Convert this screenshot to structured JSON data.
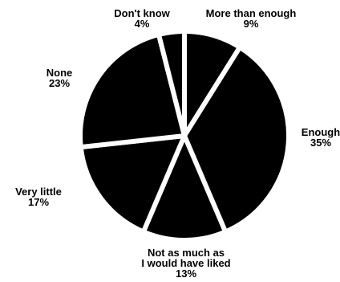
{
  "chart_data": {
    "type": "pie",
    "title": "",
    "slices": [
      {
        "label_lines": [
          "More than enough"
        ],
        "value": 9,
        "value_label": "9%"
      },
      {
        "label_lines": [
          "Enough"
        ],
        "value": 35,
        "value_label": "35%"
      },
      {
        "label_lines": [
          "Not as much as",
          "I would have liked"
        ],
        "value": 13,
        "value_label": "13%"
      },
      {
        "label_lines": [
          "Very little"
        ],
        "value": 17,
        "value_label": "17%"
      },
      {
        "label_lines": [
          "None"
        ],
        "value": 23,
        "value_label": "23%"
      },
      {
        "label_lines": [
          "Don't know"
        ],
        "value": 4,
        "value_label": "4%"
      }
    ],
    "colors": {
      "slice_fill": "#000000",
      "separator": "#ffffff",
      "background": "#ffffff"
    },
    "start_angle_deg": 0,
    "direction": "clockwise"
  }
}
